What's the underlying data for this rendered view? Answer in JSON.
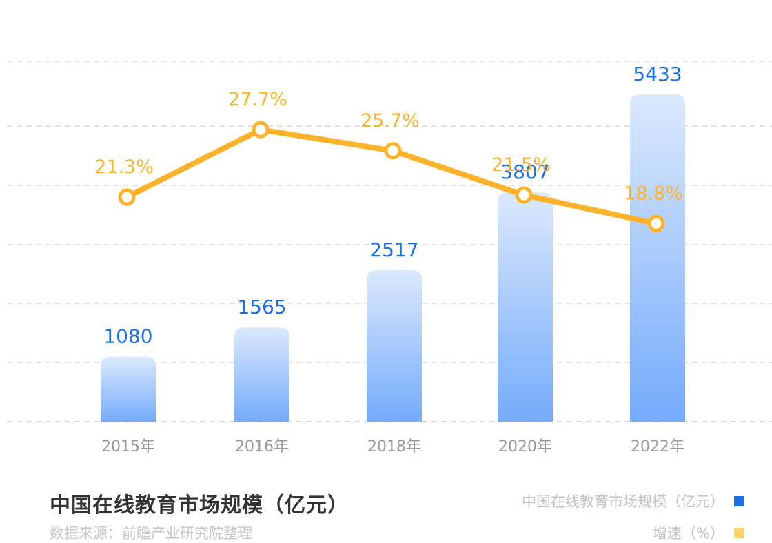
{
  "chart_data": {
    "type": "bar+line",
    "categories": [
      "2015年",
      "2016年",
      "2018年",
      "2020年",
      "2022年"
    ],
    "series": [
      {
        "name": "中国在线教育市场规模（亿元）",
        "kind": "bar",
        "values": [
          1080,
          1565,
          2517,
          3807,
          5433
        ],
        "color": "#1A6FE8"
      },
      {
        "name": "增速（%）",
        "kind": "line",
        "values": [
          21.3,
          27.7,
          25.7,
          21.5,
          18.8
        ],
        "labels": [
          "21.3%",
          "27.7%",
          "25.7%",
          "21.5%",
          "18.8%"
        ],
        "color": "#FBB32C"
      }
    ],
    "bar_ylim": [
      0,
      7000
    ],
    "line_ylim": [
      0,
      40
    ],
    "title": "中国在线教育市场规模（亿元）",
    "xlabel": "",
    "ylabel": "",
    "grid": true
  },
  "footer": {
    "title": "中国在线教育市场规模（亿元）",
    "source": "数据来源：前瞻产业研究院整理"
  },
  "legend": {
    "items": [
      {
        "label": "中国在线教育市场规模（亿元）",
        "color": "#1A6FE8"
      },
      {
        "label": "增速（%）",
        "color": "#FFD36B"
      }
    ]
  }
}
